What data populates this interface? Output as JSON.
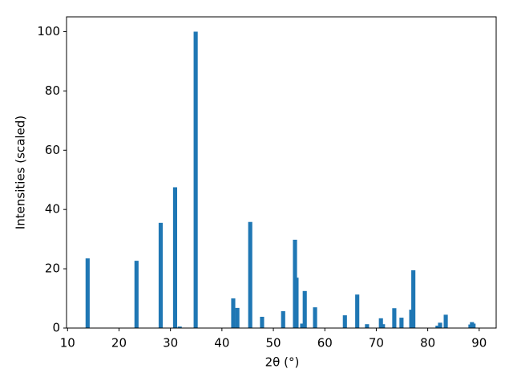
{
  "chart_data": {
    "type": "bar",
    "xlabel": "2θ (°)",
    "ylabel": "Intensities (scaled)",
    "x": [
      13.9,
      23.4,
      28.1,
      30.9,
      31.8,
      34.9,
      42.2,
      43.0,
      45.5,
      47.8,
      51.9,
      54.2,
      54.5,
      55.6,
      56.1,
      58.1,
      63.9,
      66.3,
      68.2,
      70.9,
      71.3,
      73.5,
      74.9,
      76.8,
      77.2,
      81.9,
      82.4,
      83.5,
      88.3,
      88.6,
      88.9
    ],
    "values": [
      23.5,
      22.7,
      35.5,
      47.5,
      0.5,
      100,
      10,
      6.8,
      35.8,
      3.8,
      5.7,
      29.8,
      17,
      1.5,
      12.5,
      7,
      4.3,
      11.3,
      1.3,
      3.3,
      1.3,
      6.7,
      3.5,
      6.2,
      19.5,
      0.8,
      1.8,
      4.5,
      1.2,
      2,
      1.5
    ],
    "color": "#1f77b4",
    "xlim": [
      9.8,
      93.3
    ],
    "xticks": [
      10,
      20,
      30,
      40,
      50,
      60,
      70,
      80,
      90
    ],
    "ylim": [
      0,
      105
    ],
    "yticks": [
      0,
      20,
      40,
      60,
      80,
      100
    ]
  }
}
